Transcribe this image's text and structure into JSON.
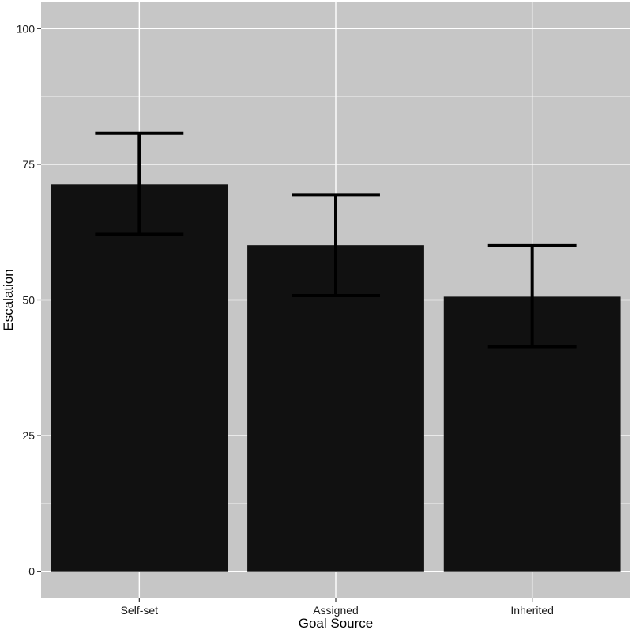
{
  "chart_data": {
    "type": "bar",
    "title": "",
    "xlabel": "Goal Source",
    "ylabel": "Escalation",
    "categories": [
      "Self-set",
      "Assigned",
      "Inherited"
    ],
    "values": [
      71.3,
      60.1,
      50.6
    ],
    "error_low": [
      62.1,
      50.8,
      41.4
    ],
    "error_high": [
      80.7,
      69.4,
      60.0
    ],
    "ylim": [
      -5,
      105
    ],
    "yticks": [
      0,
      25,
      50,
      75,
      100
    ],
    "grid": true,
    "legend": "none",
    "colors": {
      "panel_background": "#c6c6c6",
      "grid": "#ffffff",
      "bar_fill": "#111111",
      "error_bar": "#000000"
    }
  }
}
